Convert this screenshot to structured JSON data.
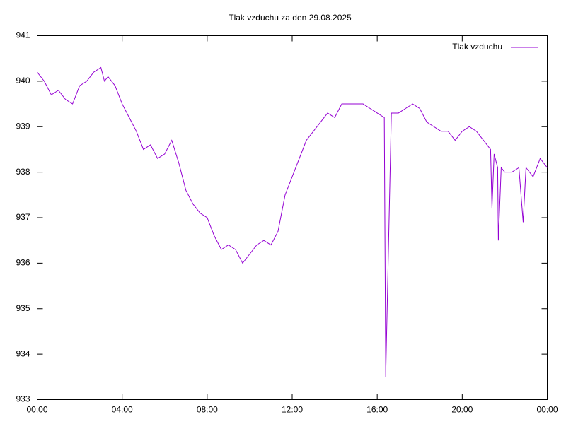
{
  "chart_data": {
    "type": "line",
    "title": "Tlak vzduchu za den 29.08.2025",
    "x": [
      0,
      20,
      40,
      60,
      80,
      100,
      120,
      140,
      160,
      180,
      190,
      200,
      220,
      240,
      260,
      280,
      300,
      320,
      340,
      360,
      380,
      400,
      420,
      440,
      460,
      480,
      500,
      520,
      540,
      560,
      580,
      600,
      620,
      640,
      660,
      680,
      700,
      720,
      740,
      760,
      780,
      800,
      820,
      840,
      860,
      880,
      900,
      920,
      940,
      960,
      980,
      984,
      1000,
      1020,
      1040,
      1060,
      1080,
      1100,
      1120,
      1140,
      1160,
      1180,
      1200,
      1220,
      1240,
      1260,
      1280,
      1284,
      1290,
      1300,
      1302,
      1310,
      1320,
      1340,
      1360,
      1372,
      1380,
      1400,
      1420,
      1440
    ],
    "series": [
      {
        "name": "Tlak vzduchu",
        "color": "#9400d3",
        "values": [
          940.2,
          940.0,
          939.7,
          939.8,
          939.6,
          939.5,
          939.9,
          940.0,
          940.2,
          940.3,
          940.0,
          940.1,
          939.9,
          939.5,
          939.2,
          938.9,
          938.5,
          938.6,
          938.3,
          938.4,
          938.7,
          938.2,
          937.6,
          937.3,
          937.1,
          937.0,
          936.6,
          936.3,
          936.4,
          936.3,
          936.0,
          936.2,
          936.4,
          936.5,
          936.4,
          936.7,
          937.5,
          937.9,
          938.3,
          938.7,
          938.9,
          939.1,
          939.3,
          939.2,
          939.5,
          939.5,
          939.5,
          939.5,
          939.4,
          939.3,
          939.2,
          933.5,
          939.3,
          939.3,
          939.4,
          939.5,
          939.4,
          939.1,
          939.0,
          938.9,
          938.9,
          938.7,
          938.9,
          939.0,
          938.9,
          938.7,
          938.5,
          937.2,
          938.4,
          938.1,
          936.5,
          938.1,
          938.0,
          938.0,
          938.1,
          936.9,
          938.1,
          937.9,
          938.3,
          938.1
        ]
      }
    ],
    "xlim": [
      0,
      1440
    ],
    "xticks": [
      {
        "value": 0,
        "label": "00:00"
      },
      {
        "value": 240,
        "label": "04:00"
      },
      {
        "value": 480,
        "label": "08:00"
      },
      {
        "value": 720,
        "label": "12:00"
      },
      {
        "value": 960,
        "label": "16:00"
      },
      {
        "value": 1200,
        "label": "20:00"
      },
      {
        "value": 1440,
        "label": "00:00"
      }
    ],
    "ylim": [
      933,
      941
    ],
    "yticks": [
      933,
      934,
      935,
      936,
      937,
      938,
      939,
      940,
      941
    ],
    "legend": "top-right"
  }
}
